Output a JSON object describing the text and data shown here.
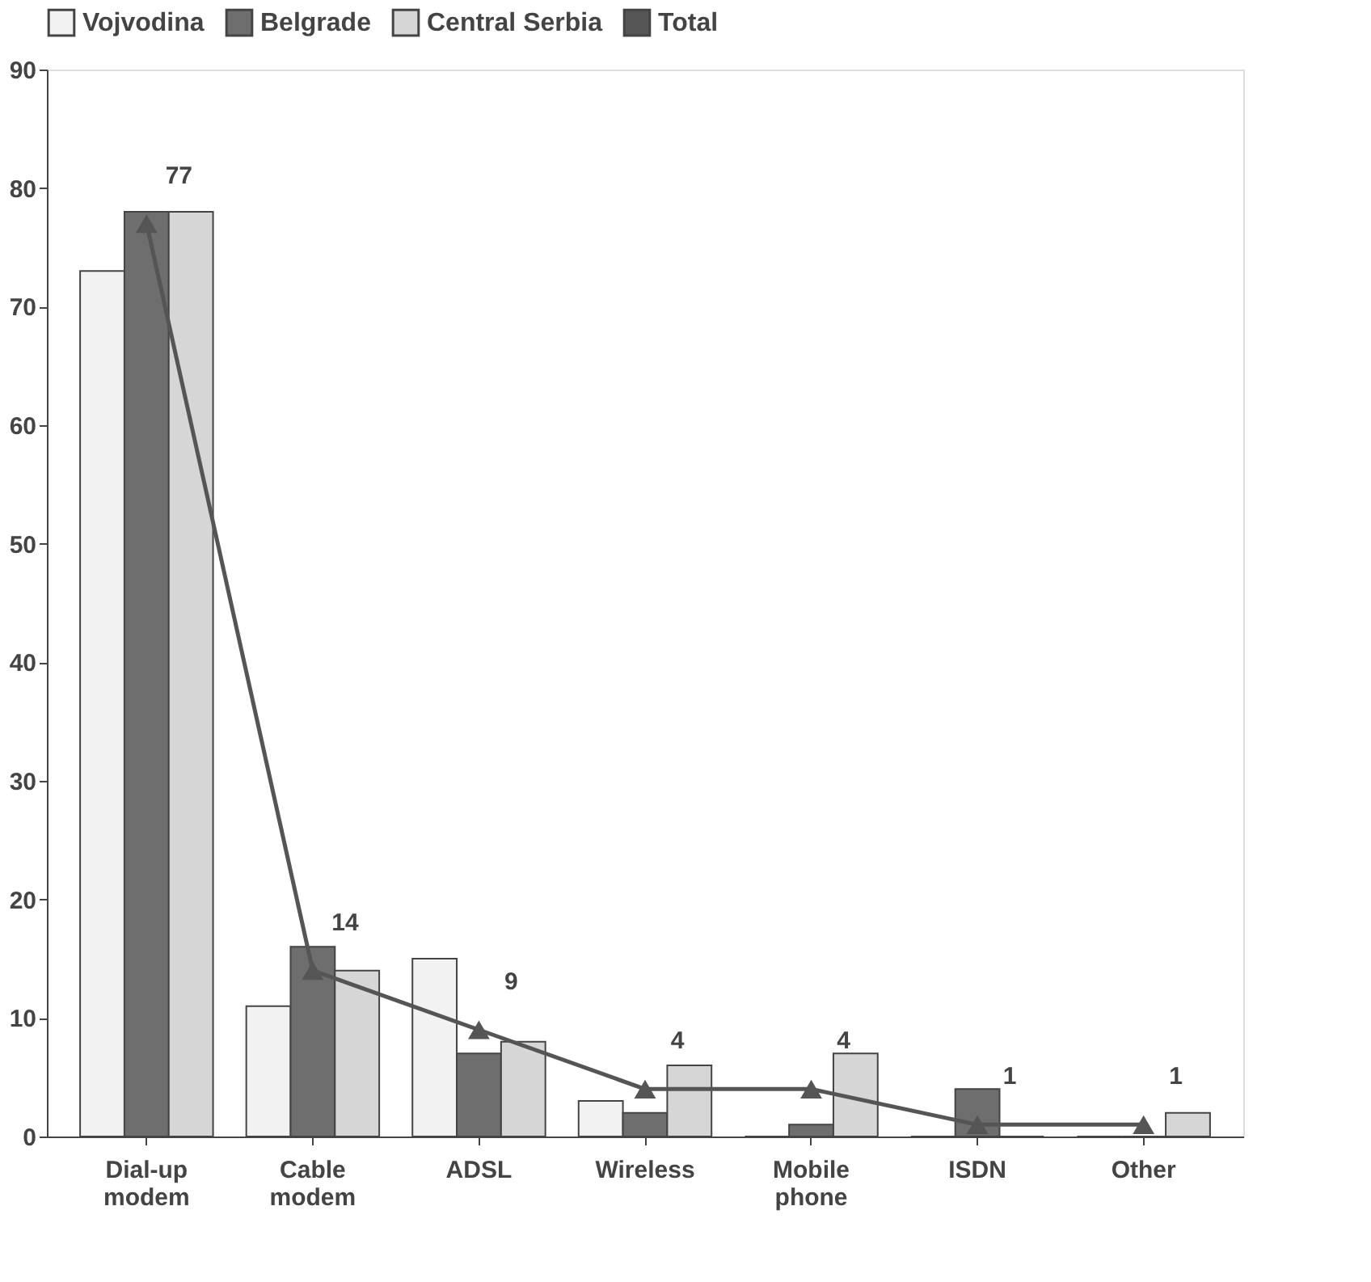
{
  "chart_data": {
    "type": "bar",
    "categories": [
      "Dial-up modem",
      "Cable modem",
      "ADSL",
      "Wireless",
      "Mobile phone",
      "ISDN",
      "Other"
    ],
    "series": [
      {
        "name": "Vojvodina",
        "color": "#f2f2f2",
        "values": [
          73,
          11,
          15,
          3,
          0,
          0,
          0
        ]
      },
      {
        "name": "Belgrade",
        "color": "#6e6e6e",
        "values": [
          78,
          16,
          7,
          2,
          1,
          4,
          0
        ]
      },
      {
        "name": "Central Serbia",
        "color": "#d6d6d6",
        "values": [
          78,
          14,
          8,
          6,
          7,
          0,
          2
        ]
      },
      {
        "name": "Total",
        "type": "line",
        "color": "#555555",
        "marker": "triangle",
        "data_labels": true,
        "values": [
          77,
          14,
          9,
          4,
          4,
          1,
          1
        ]
      }
    ],
    "ylim": [
      0,
      90
    ],
    "yticks": [
      0,
      10,
      20,
      30,
      40,
      50,
      60,
      70,
      80,
      90
    ],
    "grid": false,
    "legend": "top"
  }
}
